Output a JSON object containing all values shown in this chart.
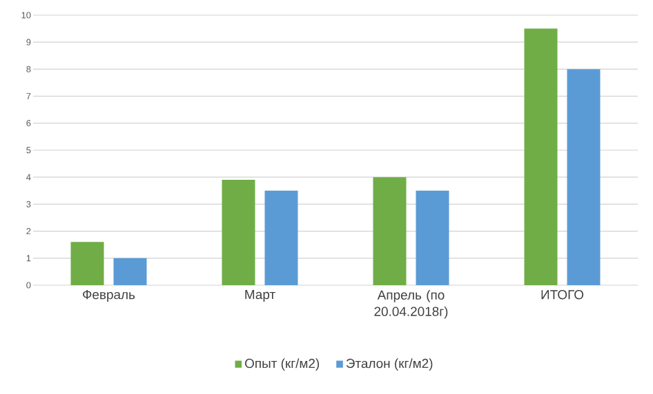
{
  "chart_data": {
    "type": "bar",
    "categories": [
      "Февраль",
      "Март",
      "Апрель (по 20.04.2018г)",
      "ИТОГО"
    ],
    "series": [
      {
        "name": "Опыт (кг/м2)",
        "color": "#70ad47",
        "values": [
          1.6,
          3.9,
          4.0,
          9.5
        ]
      },
      {
        "name": "Эталон (кг/м2)",
        "color": "#5b9bd5",
        "values": [
          1.0,
          3.5,
          3.5,
          8.0
        ]
      }
    ],
    "ylim": [
      0,
      10
    ],
    "yticks": [
      0,
      1,
      2,
      3,
      4,
      5,
      6,
      7,
      8,
      9,
      10
    ],
    "grid": "y",
    "legend": "bottom"
  }
}
